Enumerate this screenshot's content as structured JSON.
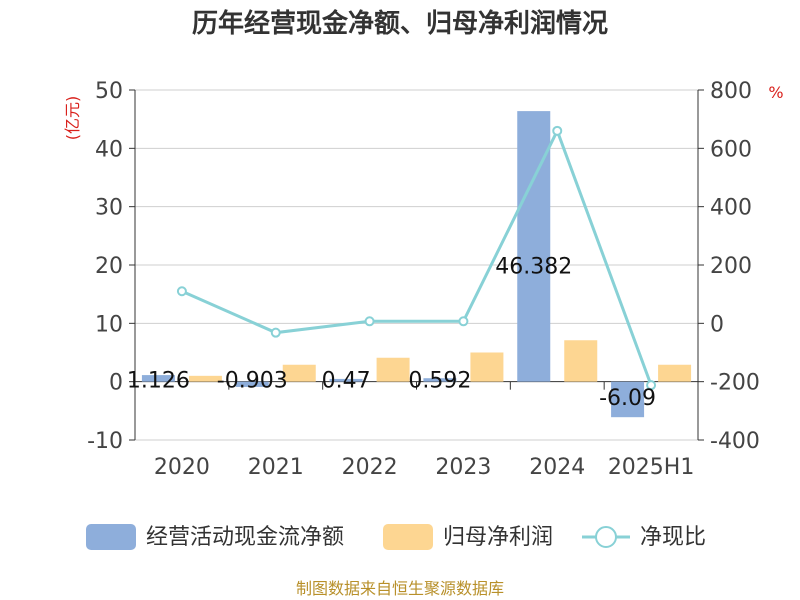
{
  "chart_data": {
    "type": "bar",
    "title": "历年经营现金净额、归母净利润情况",
    "categories": [
      "2020",
      "2021",
      "2022",
      "2023",
      "2024",
      "2025H1"
    ],
    "y_left": {
      "unit": "(亿元)",
      "range": [
        -10,
        50
      ],
      "ticks": [
        -10,
        0,
        10,
        20,
        30,
        40,
        50
      ]
    },
    "y_right": {
      "unit": "%",
      "range": [
        -400,
        800
      ],
      "ticks": [
        -400,
        -200,
        0,
        200,
        400,
        600,
        800
      ]
    },
    "grid": true,
    "legend_position": "bottom",
    "series": [
      {
        "name": "经营活动现金流净额",
        "type": "bar",
        "axis": "left",
        "color": "#8eaedb",
        "values": [
          1.126,
          -0.903,
          0.47,
          0.592,
          46.382,
          -6.09
        ],
        "labels": [
          "1.126",
          "-0.903",
          "0.47",
          "0.592",
          "46.382",
          "-6.09"
        ]
      },
      {
        "name": "归母净利润",
        "type": "bar",
        "axis": "left",
        "color": "#fdd692",
        "values": [
          1.0,
          2.9,
          4.1,
          5.0,
          7.1,
          2.9
        ]
      },
      {
        "name": "净现比",
        "type": "line",
        "axis": "right",
        "color": "#88d1d6",
        "values": [
          110,
          -32,
          7,
          7,
          660,
          -212
        ]
      }
    ],
    "source": "制图数据来自恒生聚源数据库"
  }
}
